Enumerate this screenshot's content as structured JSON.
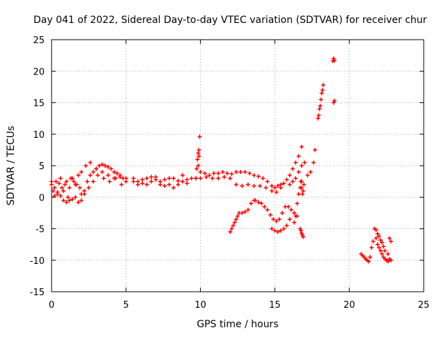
{
  "chart_data": {
    "type": "scatter",
    "title": "Day 041 of 2022, Sidereal Day-to-day VTEC variation (SDTVAR) for receiver chur",
    "xlabel": "GPS time / hours",
    "ylabel": "SDTVAR / TECUs",
    "xlim": [
      0,
      25
    ],
    "ylim": [
      -15,
      25
    ],
    "x_ticks": [
      0,
      5,
      10,
      15,
      20,
      25
    ],
    "y_ticks": [
      -15,
      -10,
      -5,
      0,
      5,
      10,
      15,
      20,
      25
    ],
    "x_tick_labels": [
      "0",
      "5",
      "10",
      "15",
      "20",
      "25"
    ],
    "y_tick_labels": [
      "-15",
      "-10",
      "-5",
      "0",
      "5",
      "10",
      "15",
      "20",
      "25"
    ],
    "grid": true,
    "marker": "+",
    "series": [
      {
        "name": "SDTVAR",
        "color": "#ff0000",
        "x": [
          0.0,
          0.2,
          0.4,
          0.6,
          0.8,
          1.0,
          1.2,
          1.4,
          1.6,
          1.8,
          2.0,
          2.2,
          2.4,
          2.6,
          2.8,
          3.0,
          3.2,
          3.4,
          3.6,
          3.8,
          4.0,
          4.2,
          4.4,
          4.6,
          4.8,
          5.0,
          0.0,
          0.3,
          0.6,
          0.9,
          1.2,
          1.5,
          1.8,
          2.0,
          2.3,
          2.6,
          3.0,
          3.4,
          3.8,
          4.2,
          4.6,
          5.0,
          0.1,
          0.4,
          0.7,
          1.0,
          1.3,
          1.6,
          1.9,
          2.2,
          2.5,
          2.8,
          3.1,
          3.5,
          3.9,
          4.3,
          4.7,
          0.2,
          0.5,
          0.8,
          1.1,
          1.4,
          1.7,
          2.0,
          5.5,
          5.8,
          6.1,
          6.4,
          6.7,
          7.0,
          7.3,
          7.6,
          7.9,
          8.2,
          8.5,
          8.8,
          9.1,
          9.4,
          9.7,
          5.5,
          5.8,
          6.1,
          6.4,
          6.7,
          7.0,
          7.3,
          7.6,
          7.9,
          8.2,
          8.5,
          8.8,
          9.1,
          9.7,
          9.75,
          9.8,
          9.85,
          9.9,
          9.95,
          9.9,
          9.85,
          10.0,
          10.3,
          10.6,
          10.9,
          11.2,
          11.5,
          11.8,
          12.1,
          12.4,
          12.7,
          13.0,
          13.3,
          13.6,
          13.9,
          14.2,
          14.5,
          14.8,
          15.0,
          15.2,
          15.4,
          15.6,
          15.8,
          16.0,
          16.2,
          16.4,
          16.6,
          16.8,
          10.0,
          10.4,
          10.8,
          11.2,
          11.6,
          12.0,
          12.4,
          12.8,
          13.2,
          13.6,
          14.0,
          14.4,
          14.8,
          15.1,
          15.4,
          12.0,
          12.1,
          12.2,
          12.3,
          12.4,
          12.5,
          12.6,
          12.8,
          13.0,
          13.2,
          13.4,
          13.6,
          13.7,
          13.9,
          14.1,
          14.3,
          14.5,
          14.7,
          14.9,
          15.1,
          15.3,
          15.5,
          15.7,
          15.9,
          16.1,
          16.3,
          16.5,
          14.8,
          15.0,
          15.2,
          15.4,
          15.6,
          15.8,
          16.0,
          16.3,
          16.4,
          16.5,
          16.6,
          16.7,
          16.8,
          16.0,
          16.2,
          16.4,
          16.6,
          16.8,
          17.0,
          17.2,
          17.4,
          17.6,
          17.7,
          16.7,
          16.75,
          16.8,
          16.85,
          16.9,
          16.75,
          16.8,
          16.85,
          16.9,
          16.95,
          17.9,
          17.95,
          18.0,
          18.05,
          18.1,
          18.15,
          18.2,
          18.25,
          18.9,
          18.95,
          19.0,
          18.95,
          19.0,
          20.8,
          20.9,
          21.0,
          21.1,
          21.2,
          21.3,
          21.4,
          21.5,
          21.6,
          21.7,
          21.8,
          21.9,
          22.0,
          22.1,
          22.2,
          22.3,
          22.4,
          22.5,
          22.6,
          22.7,
          22.8,
          21.8,
          21.9,
          22.0,
          22.1,
          22.2,
          22.3,
          22.4,
          22.6,
          22.7,
          22.8
        ],
        "y": [
          2.5,
          1.5,
          0.8,
          0.2,
          -0.5,
          -0.8,
          -0.5,
          -0.3,
          0.0,
          -0.8,
          -0.5,
          1.0,
          2.5,
          3.5,
          4.0,
          4.5,
          5.0,
          5.2,
          5.0,
          4.8,
          4.5,
          4.0,
          3.8,
          3.5,
          3.0,
          2.5,
          2.0,
          2.5,
          3.0,
          2.0,
          1.5,
          2.5,
          3.5,
          4.0,
          5.0,
          5.5,
          4.5,
          4.0,
          3.5,
          3.0,
          3.2,
          3.0,
          1.0,
          0.5,
          1.5,
          2.5,
          3.0,
          2.0,
          1.5,
          0.5,
          1.5,
          2.5,
          3.5,
          3.0,
          2.5,
          3.0,
          2.0,
          0.2,
          2.2,
          1.0,
          0.0,
          3.0,
          2.0,
          0.5,
          3.0,
          2.5,
          2.8,
          3.0,
          3.2,
          2.8,
          2.5,
          2.8,
          3.0,
          3.0,
          2.6,
          2.5,
          2.8,
          3.0,
          3.0,
          2.5,
          2.0,
          2.2,
          2.0,
          2.5,
          3.2,
          2.0,
          1.8,
          2.0,
          1.5,
          2.0,
          3.5,
          2.2,
          3.0,
          4.5,
          6.0,
          7.0,
          7.5,
          9.6,
          6.5,
          5.0,
          4.0,
          3.8,
          3.5,
          3.8,
          3.8,
          4.0,
          3.8,
          3.7,
          4.0,
          4.0,
          4.0,
          3.8,
          3.5,
          3.3,
          3.0,
          2.5,
          1.8,
          1.5,
          1.8,
          2.0,
          2.2,
          2.8,
          3.5,
          4.5,
          5.5,
          6.5,
          8.0,
          3.0,
          3.2,
          3.0,
          3.0,
          3.2,
          3.0,
          2.0,
          1.8,
          2.0,
          1.8,
          1.8,
          1.5,
          1.0,
          0.8,
          1.5,
          -5.5,
          -5.0,
          -4.5,
          -4.0,
          -3.5,
          -3.0,
          -2.5,
          -2.5,
          -2.3,
          -2.0,
          -1.0,
          -0.5,
          -0.5,
          -0.8,
          -1.0,
          -1.5,
          -2.0,
          -2.8,
          -3.5,
          -3.8,
          -3.5,
          -2.5,
          -1.5,
          -1.5,
          -2.0,
          -2.5,
          -3.0,
          -5.0,
          -5.3,
          -5.5,
          -5.3,
          -5.0,
          -4.5,
          -3.5,
          -4.0,
          -3.0,
          -1.0,
          0.5,
          1.5,
          2.5,
          2.0,
          2.5,
          3.0,
          4.0,
          5.0,
          5.5,
          3.5,
          4.0,
          5.5,
          7.5,
          -5.0,
          -5.3,
          -5.7,
          -6.0,
          -6.3,
          2.5,
          1.5,
          0.5,
          1.0,
          2.0,
          12.5,
          13.0,
          14.0,
          14.5,
          15.5,
          16.5,
          17.0,
          17.8,
          21.6,
          22.0,
          21.7,
          15.0,
          15.3,
          -9.0,
          -9.3,
          -9.5,
          -9.8,
          -10.0,
          -10.2,
          -9.5,
          -8.0,
          -7.0,
          -5.0,
          -6.5,
          -7.5,
          -8.0,
          -8.5,
          -9.0,
          -9.5,
          -9.8,
          -10.0,
          -10.2,
          -9.8,
          -10.0,
          -5.2,
          -5.8,
          -6.2,
          -6.8,
          -7.2,
          -7.8,
          -8.5,
          -9.0,
          -6.5,
          -7.0
        ]
      }
    ]
  }
}
